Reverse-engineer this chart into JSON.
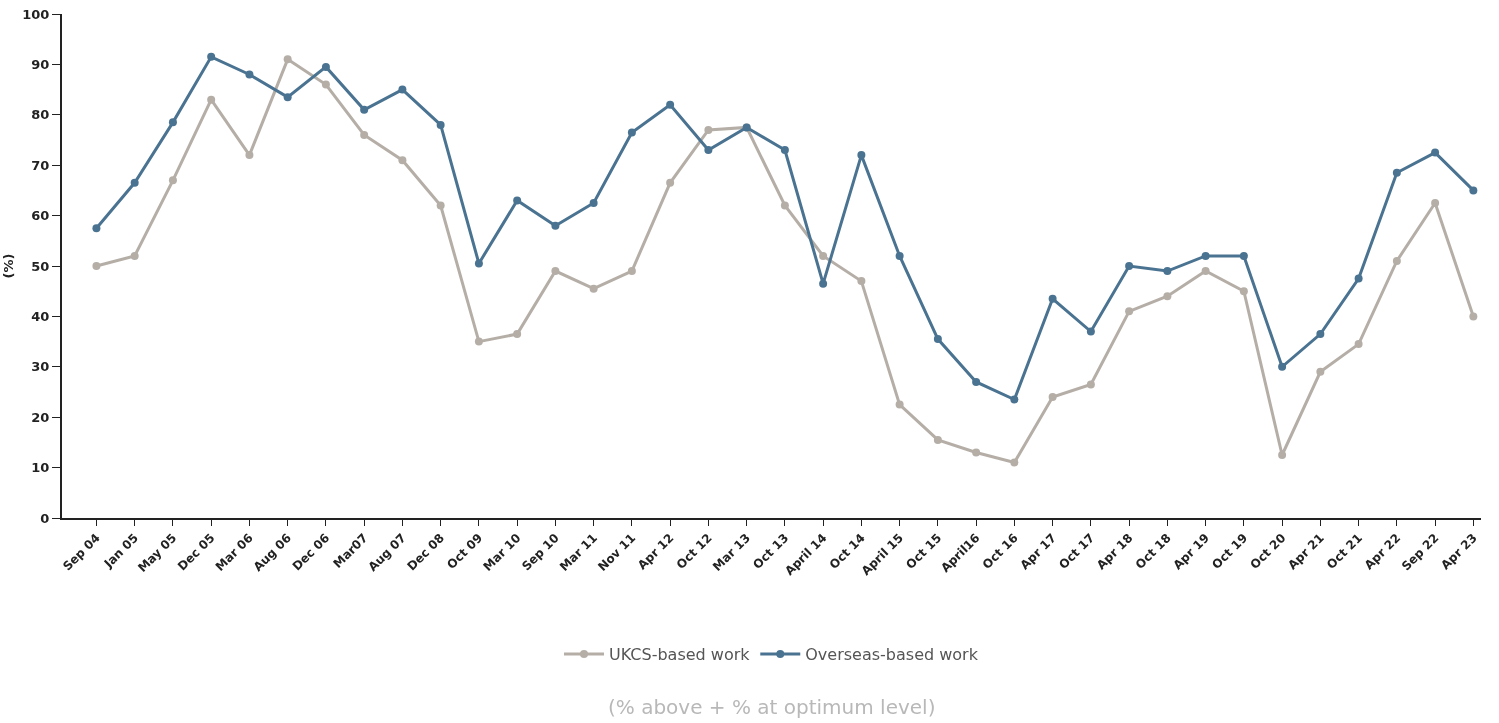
{
  "chart_data": {
    "type": "line",
    "ylabel": "(%)",
    "categories": [
      "Sep 04",
      "Jan 05",
      "May 05",
      "Dec 05",
      "Mar 06",
      "Aug 06",
      "Dec 06",
      "Mar07",
      "Aug 07",
      "Dec 08",
      "Oct 09",
      "Mar 10",
      "Sep 10",
      "Mar 11",
      "Nov 11",
      "Apr 12",
      "Oct 12",
      "Mar 13",
      "Oct 13",
      "April 14",
      "Oct 14",
      "April 15",
      "Oct 15",
      "April16",
      "Oct 16",
      "Apr 17",
      "Oct 17",
      "Apr 18",
      "Oct 18",
      "Apr 19",
      "Oct 19",
      "Oct 20",
      "Apr 21",
      "Oct 21",
      "Apr 22",
      "Sep 22",
      "Apr 23"
    ],
    "series": [
      {
        "name": "UKCS-based work",
        "color": "#b5aea7",
        "values": [
          50,
          52,
          67,
          83,
          72,
          91,
          86,
          76,
          71,
          62,
          35,
          36.5,
          49,
          45.5,
          49,
          66.5,
          77,
          77.5,
          62,
          52,
          47,
          22.5,
          15.5,
          13,
          11,
          24,
          26.5,
          41,
          44,
          49,
          45,
          12.5,
          29,
          34.5,
          51,
          62.5,
          40
        ]
      },
      {
        "name": "Overseas-based work",
        "color": "#4a7391",
        "values": [
          57.5,
          66.5,
          78.5,
          91.5,
          88,
          83.5,
          89.5,
          81,
          85,
          78,
          50.5,
          63,
          58,
          62.5,
          76.5,
          82,
          73,
          77.5,
          73,
          46.5,
          72,
          52,
          35.5,
          27,
          23.5,
          43.5,
          37,
          50,
          49,
          52,
          52,
          30,
          36.5,
          47.5,
          68.5,
          72.5,
          65
        ]
      }
    ],
    "ylim": [
      0,
      100
    ],
    "yticks": [
      0,
      10,
      20,
      30,
      40,
      50,
      60,
      70,
      80,
      90,
      100
    ],
    "grid": false,
    "legend": "bottom",
    "marker": "circle",
    "line_style": "solid",
    "annotations": [
      "(% above + % at optimum level)"
    ]
  }
}
